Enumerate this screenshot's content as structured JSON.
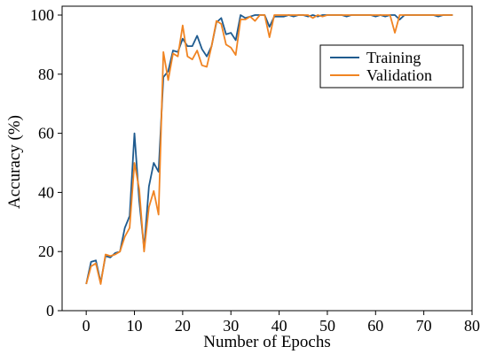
{
  "chart_data": {
    "type": "line",
    "title": "",
    "xlabel": "Number of Epochs",
    "ylabel": "Accuracy (%)",
    "xlim": [
      -5,
      80
    ],
    "ylim": [
      0,
      103
    ],
    "xticks": [
      0,
      10,
      20,
      30,
      40,
      50,
      60,
      70,
      80
    ],
    "yticks": [
      0,
      20,
      40,
      60,
      80,
      100
    ],
    "grid": false,
    "legend_position": "upper-right",
    "x": [
      0,
      1,
      2,
      3,
      4,
      5,
      6,
      7,
      8,
      9,
      10,
      11,
      12,
      13,
      14,
      15,
      16,
      17,
      18,
      19,
      20,
      21,
      22,
      23,
      24,
      25,
      26,
      27,
      28,
      29,
      30,
      31,
      32,
      33,
      34,
      35,
      36,
      37,
      38,
      39,
      40,
      41,
      42,
      43,
      44,
      45,
      46,
      47,
      48,
      49,
      50,
      51,
      52,
      53,
      54,
      55,
      56,
      57,
      58,
      59,
      60,
      61,
      62,
      63,
      64,
      65,
      66,
      67,
      68,
      69,
      70,
      71,
      72,
      73,
      74,
      75,
      76
    ],
    "series": [
      {
        "name": "Training",
        "color": "#1f5b8f",
        "values": [
          9,
          16.5,
          17,
          9.5,
          18.5,
          18,
          19.5,
          20,
          28,
          32,
          60,
          37,
          21,
          42,
          50,
          47,
          79,
          81,
          88,
          87.5,
          92,
          89.5,
          89.5,
          93,
          88.5,
          86,
          89.5,
          97.5,
          99,
          93.5,
          94,
          91.5,
          100,
          99,
          99.5,
          100,
          100,
          100,
          96,
          99.5,
          99.5,
          99.5,
          100,
          99.5,
          100,
          100,
          99.5,
          100,
          99.5,
          100,
          100,
          100,
          100,
          100,
          99.5,
          100,
          100,
          100,
          100,
          100,
          99.5,
          100,
          99.5,
          100,
          100,
          98.5,
          100,
          100,
          100,
          100,
          100,
          100,
          100,
          99.5,
          100,
          100,
          100
        ]
      },
      {
        "name": "Validation",
        "color": "#f08422",
        "values": [
          9,
          15,
          16,
          9,
          19,
          18.5,
          19,
          20,
          25,
          28,
          50,
          41,
          20,
          35,
          40.5,
          32.5,
          87.5,
          78,
          87,
          86,
          96.5,
          86,
          85,
          88,
          83,
          82.5,
          89.5,
          98,
          97,
          90,
          89,
          86.5,
          98.5,
          98.5,
          99.5,
          98,
          100,
          100,
          92.5,
          100,
          100,
          100,
          100,
          100,
          100,
          100,
          100,
          99,
          100,
          99.5,
          100,
          100,
          100,
          100,
          100,
          100,
          100,
          100,
          100,
          100,
          100,
          100,
          100,
          100,
          94,
          100,
          100,
          100,
          100,
          100,
          100,
          100,
          100,
          100,
          100,
          100,
          100
        ]
      }
    ]
  }
}
